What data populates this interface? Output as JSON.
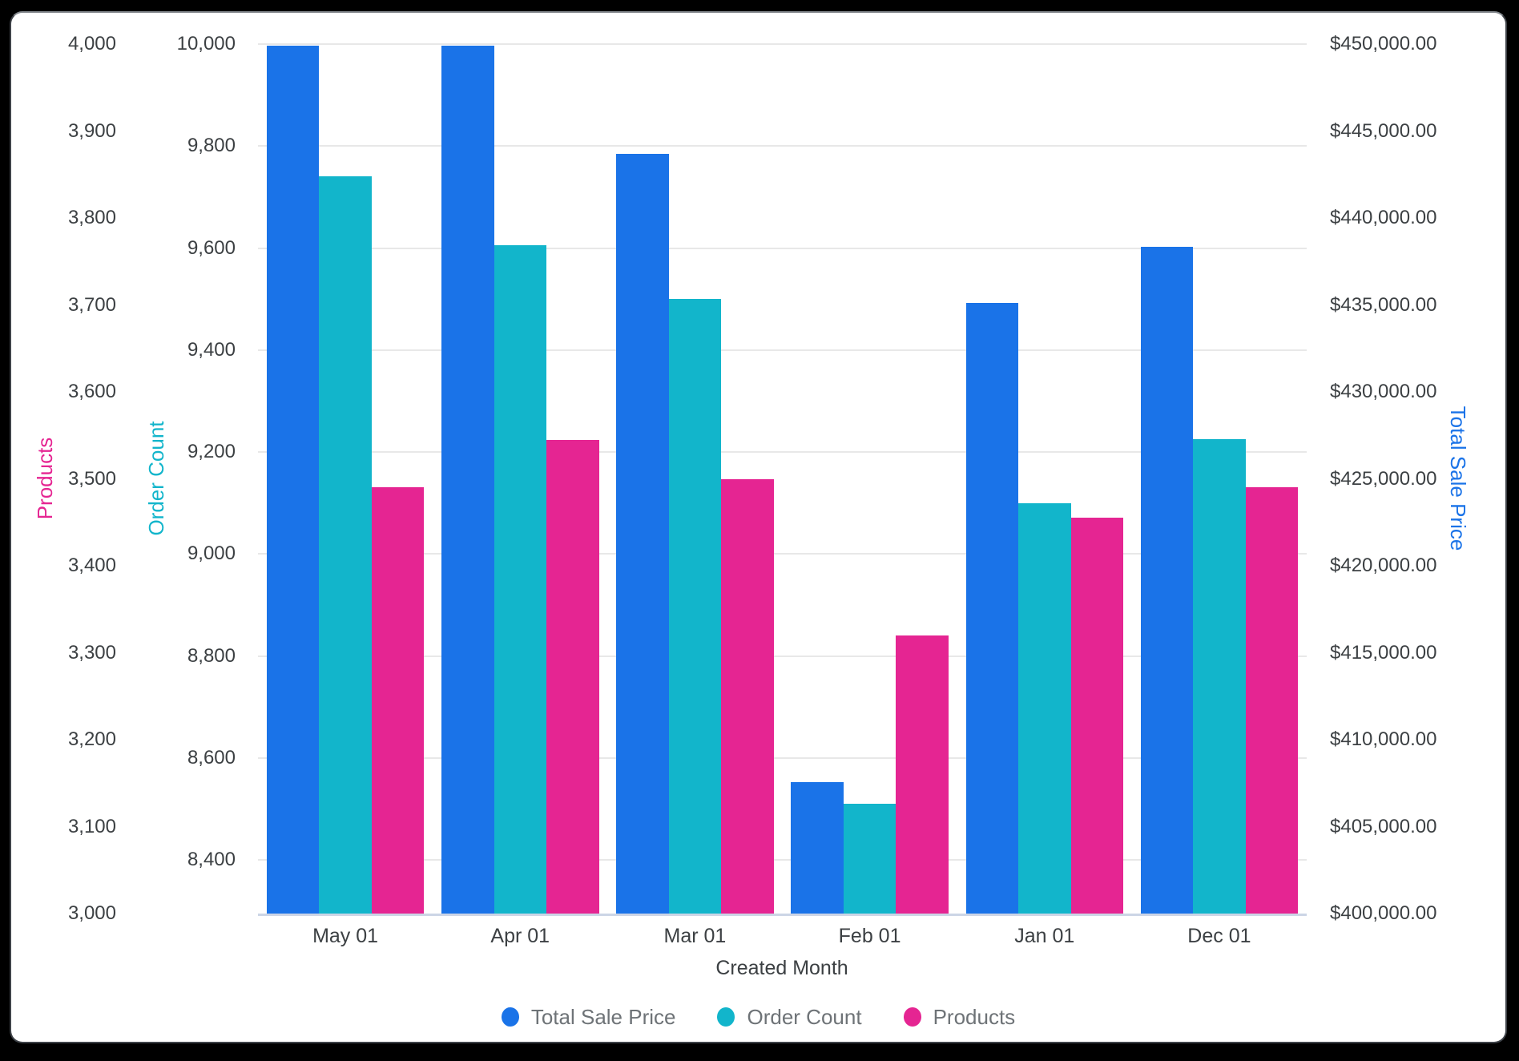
{
  "chart_data": {
    "type": "bar",
    "title": "",
    "categories": [
      "May 01",
      "Apr 01",
      "Mar 01",
      "Feb 01",
      "Jan 01",
      "Dec 01"
    ],
    "xlabel": "Created Month",
    "grid": "horizontal",
    "legend_position": "bottom",
    "series": [
      {
        "name": "Total Sale Price",
        "axis": "sale",
        "color": "#1A73E8",
        "values": [
          449900,
          449900,
          443700,
          407550,
          435100,
          438350
        ]
      },
      {
        "name": "Order Count",
        "axis": "orders",
        "color": "#12B5CB",
        "values": [
          9740,
          9605,
          9500,
          8510,
          9100,
          9225
        ]
      },
      {
        "name": "Products",
        "axis": "products",
        "color": "#E52592",
        "values": [
          3490,
          3545,
          3500,
          3320,
          3455,
          3490
        ]
      }
    ],
    "axes": {
      "products": {
        "title": "Products",
        "color": "#E52592",
        "min": 3000,
        "max": 4000,
        "tick_step": 100,
        "tick_labels": [
          "4,000",
          "3,900",
          "3,800",
          "3,700",
          "3,600",
          "3,500",
          "3,400",
          "3,300",
          "3,200",
          "3,100",
          "3,000"
        ]
      },
      "orders": {
        "title": "Order Count",
        "color": "#12B5CB",
        "min": 8295,
        "max": 10000,
        "tick_step": 200,
        "tick_values": [
          10000,
          9800,
          9600,
          9400,
          9200,
          9000,
          8800,
          8600,
          8400
        ],
        "tick_labels": [
          "10,000",
          "9,800",
          "9,600",
          "9,400",
          "9,200",
          "9,000",
          "8,800",
          "8,600",
          "8,400"
        ]
      },
      "sale": {
        "title": "Total Sale Price",
        "color": "#1A73E8",
        "min": 400000,
        "max": 450000,
        "tick_step": 5000,
        "tick_labels": [
          "$450,000.00",
          "$445,000.00",
          "$440,000.00",
          "$435,000.00",
          "$430,000.00",
          "$425,000.00",
          "$420,000.00",
          "$415,000.00",
          "$410,000.00",
          "$405,000.00",
          "$400,000.00"
        ]
      }
    },
    "legend": [
      {
        "label": "Total Sale Price",
        "color": "#1A73E8"
      },
      {
        "label": "Order Count",
        "color": "#12B5CB"
      },
      {
        "label": "Products",
        "color": "#E52592"
      }
    ]
  }
}
